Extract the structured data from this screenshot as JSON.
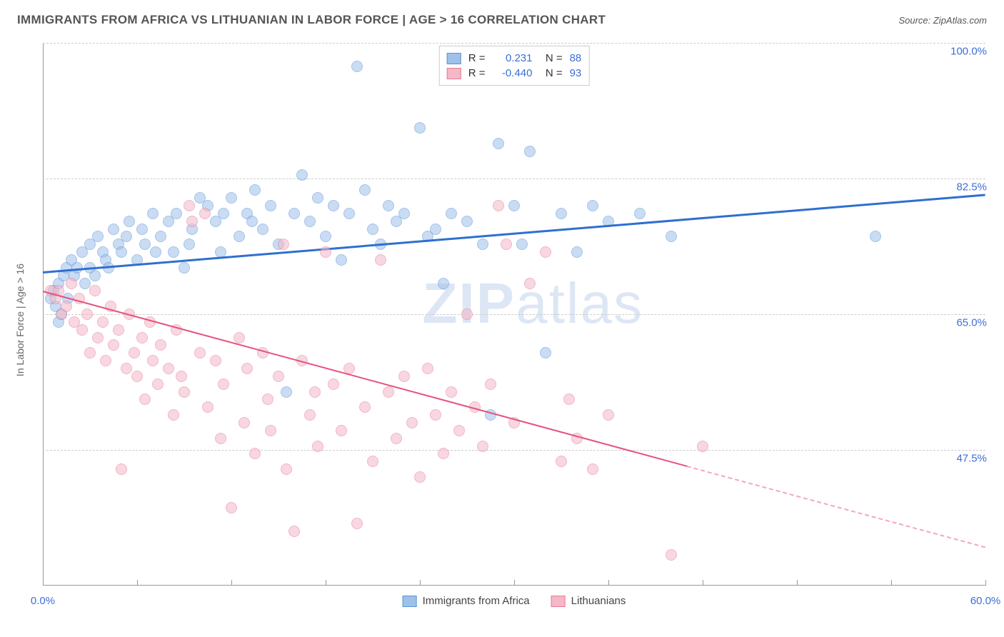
{
  "header": {
    "title": "IMMIGRANTS FROM AFRICA VS LITHUANIAN IN LABOR FORCE | AGE > 16 CORRELATION CHART",
    "source": "Source: ZipAtlas.com"
  },
  "chart": {
    "type": "scatter",
    "y_axis_label": "In Labor Force | Age > 16",
    "xlim": [
      0,
      60
    ],
    "ylim": [
      30,
      100
    ],
    "y_ticks": [
      47.5,
      65.0,
      82.5,
      100.0
    ],
    "y_tick_labels": [
      "47.5%",
      "65.0%",
      "82.5%",
      "100.0%"
    ],
    "x_ticks": [
      0,
      6,
      12,
      18,
      24,
      30,
      36,
      42,
      48,
      54,
      60
    ],
    "x_tick_labels_shown": {
      "0": "0.0%",
      "60": "60.0%"
    },
    "background_color": "#ffffff",
    "grid_color": "#cccccc",
    "axis_color": "#999999",
    "label_color": "#666666",
    "tick_label_color": "#3b6fd6",
    "title_color": "#555555",
    "watermark_text": "ZIPatlas",
    "watermark_color": "#c8d7ed",
    "point_radius": 8,
    "point_opacity": 0.55,
    "series": [
      {
        "name": "Immigrants from Africa",
        "fill_color": "#9ec1ea",
        "stroke_color": "#5b93d6",
        "line_color": "#2f6fd0",
        "line_width": 3,
        "R": "0.231",
        "N": "88",
        "trend": {
          "x1": 0,
          "y1": 70.5,
          "x2": 60,
          "y2": 80.5,
          "dash_from": 60
        },
        "points": [
          [
            0.5,
            67
          ],
          [
            0.7,
            68
          ],
          [
            0.8,
            66
          ],
          [
            1,
            69
          ],
          [
            1,
            64
          ],
          [
            1.2,
            65
          ],
          [
            1.3,
            70
          ],
          [
            1.5,
            71
          ],
          [
            1.6,
            67
          ],
          [
            1.8,
            72
          ],
          [
            2,
            70
          ],
          [
            2.2,
            71
          ],
          [
            2.5,
            73
          ],
          [
            2.7,
            69
          ],
          [
            3,
            71
          ],
          [
            3,
            74
          ],
          [
            3.3,
            70
          ],
          [
            3.5,
            75
          ],
          [
            3.8,
            73
          ],
          [
            4,
            72
          ],
          [
            4.2,
            71
          ],
          [
            4.5,
            76
          ],
          [
            4.8,
            74
          ],
          [
            5,
            73
          ],
          [
            5.3,
            75
          ],
          [
            5.5,
            77
          ],
          [
            6,
            72
          ],
          [
            6.3,
            76
          ],
          [
            6.5,
            74
          ],
          [
            7,
            78
          ],
          [
            7.2,
            73
          ],
          [
            7.5,
            75
          ],
          [
            8,
            77
          ],
          [
            8.3,
            73
          ],
          [
            8.5,
            78
          ],
          [
            9,
            71
          ],
          [
            9.3,
            74
          ],
          [
            9.5,
            76
          ],
          [
            10,
            80
          ],
          [
            10.5,
            79
          ],
          [
            11,
            77
          ],
          [
            11.3,
            73
          ],
          [
            11.5,
            78
          ],
          [
            12,
            80
          ],
          [
            12.5,
            75
          ],
          [
            13,
            78
          ],
          [
            13.3,
            77
          ],
          [
            13.5,
            81
          ],
          [
            14,
            76
          ],
          [
            14.5,
            79
          ],
          [
            15,
            74
          ],
          [
            15.5,
            55
          ],
          [
            16,
            78
          ],
          [
            16.5,
            83
          ],
          [
            17,
            77
          ],
          [
            17.5,
            80
          ],
          [
            18,
            75
          ],
          [
            18.5,
            79
          ],
          [
            19,
            72
          ],
          [
            19.5,
            78
          ],
          [
            20,
            97
          ],
          [
            20.5,
            81
          ],
          [
            21,
            76
          ],
          [
            21.5,
            74
          ],
          [
            22,
            79
          ],
          [
            22.5,
            77
          ],
          [
            23,
            78
          ],
          [
            24,
            89
          ],
          [
            24.5,
            75
          ],
          [
            25,
            76
          ],
          [
            25.5,
            69
          ],
          [
            26,
            78
          ],
          [
            27,
            77
          ],
          [
            28,
            74
          ],
          [
            28.5,
            52
          ],
          [
            29,
            87
          ],
          [
            30,
            79
          ],
          [
            30.5,
            74
          ],
          [
            31,
            86
          ],
          [
            32,
            60
          ],
          [
            33,
            78
          ],
          [
            34,
            73
          ],
          [
            35,
            79
          ],
          [
            36,
            77
          ],
          [
            38,
            78
          ],
          [
            40,
            75
          ],
          [
            53,
            75
          ]
        ]
      },
      {
        "name": "Lithuanians",
        "fill_color": "#f4b8c7",
        "stroke_color": "#e67a99",
        "line_color": "#e6527d",
        "line_width": 2,
        "R": "-0.440",
        "N": "93",
        "trend": {
          "x1": 0,
          "y1": 68,
          "x2": 60,
          "y2": 35,
          "dash_from": 41
        },
        "points": [
          [
            0.5,
            68
          ],
          [
            0.8,
            67
          ],
          [
            1,
            68
          ],
          [
            1.2,
            65
          ],
          [
            1.5,
            66
          ],
          [
            1.8,
            69
          ],
          [
            2,
            64
          ],
          [
            2.3,
            67
          ],
          [
            2.5,
            63
          ],
          [
            2.8,
            65
          ],
          [
            3,
            60
          ],
          [
            3.3,
            68
          ],
          [
            3.5,
            62
          ],
          [
            3.8,
            64
          ],
          [
            4,
            59
          ],
          [
            4.3,
            66
          ],
          [
            4.5,
            61
          ],
          [
            4.8,
            63
          ],
          [
            5,
            45
          ],
          [
            5.3,
            58
          ],
          [
            5.5,
            65
          ],
          [
            5.8,
            60
          ],
          [
            6,
            57
          ],
          [
            6.3,
            62
          ],
          [
            6.5,
            54
          ],
          [
            6.8,
            64
          ],
          [
            7,
            59
          ],
          [
            7.3,
            56
          ],
          [
            7.5,
            61
          ],
          [
            8,
            58
          ],
          [
            8.3,
            52
          ],
          [
            8.5,
            63
          ],
          [
            8.8,
            57
          ],
          [
            9,
            55
          ],
          [
            9.3,
            79
          ],
          [
            9.5,
            77
          ],
          [
            10,
            60
          ],
          [
            10.3,
            78
          ],
          [
            10.5,
            53
          ],
          [
            11,
            59
          ],
          [
            11.3,
            49
          ],
          [
            11.5,
            56
          ],
          [
            12,
            40
          ],
          [
            12.5,
            62
          ],
          [
            12.8,
            51
          ],
          [
            13,
            58
          ],
          [
            13.5,
            47
          ],
          [
            14,
            60
          ],
          [
            14.3,
            54
          ],
          [
            14.5,
            50
          ],
          [
            15,
            57
          ],
          [
            15.3,
            74
          ],
          [
            15.5,
            45
          ],
          [
            16,
            37
          ],
          [
            16.5,
            59
          ],
          [
            17,
            52
          ],
          [
            17.3,
            55
          ],
          [
            17.5,
            48
          ],
          [
            18,
            73
          ],
          [
            18.5,
            56
          ],
          [
            19,
            50
          ],
          [
            19.5,
            58
          ],
          [
            20,
            38
          ],
          [
            20.5,
            53
          ],
          [
            21,
            46
          ],
          [
            21.5,
            72
          ],
          [
            22,
            55
          ],
          [
            22.5,
            49
          ],
          [
            23,
            57
          ],
          [
            23.5,
            51
          ],
          [
            24,
            44
          ],
          [
            24.5,
            58
          ],
          [
            25,
            52
          ],
          [
            25.5,
            47
          ],
          [
            26,
            55
          ],
          [
            26.5,
            50
          ],
          [
            27,
            65
          ],
          [
            27.5,
            53
          ],
          [
            28,
            48
          ],
          [
            28.5,
            56
          ],
          [
            29,
            79
          ],
          [
            29.5,
            74
          ],
          [
            30,
            51
          ],
          [
            31,
            69
          ],
          [
            32,
            73
          ],
          [
            33,
            46
          ],
          [
            33.5,
            54
          ],
          [
            34,
            49
          ],
          [
            35,
            45
          ],
          [
            36,
            52
          ],
          [
            40,
            34
          ],
          [
            42,
            48
          ]
        ]
      }
    ],
    "legend_top": [
      {
        "swatch_fill": "#9ec1ea",
        "swatch_stroke": "#5b93d6",
        "R": "0.231",
        "N": "88"
      },
      {
        "swatch_fill": "#f4b8c7",
        "swatch_stroke": "#e67a99",
        "R": "-0.440",
        "N": "93"
      }
    ],
    "legend_bottom": [
      {
        "swatch_fill": "#9ec1ea",
        "swatch_stroke": "#5b93d6",
        "label": "Immigrants from Africa"
      },
      {
        "swatch_fill": "#f4b8c7",
        "swatch_stroke": "#e67a99",
        "label": "Lithuanians"
      }
    ]
  }
}
